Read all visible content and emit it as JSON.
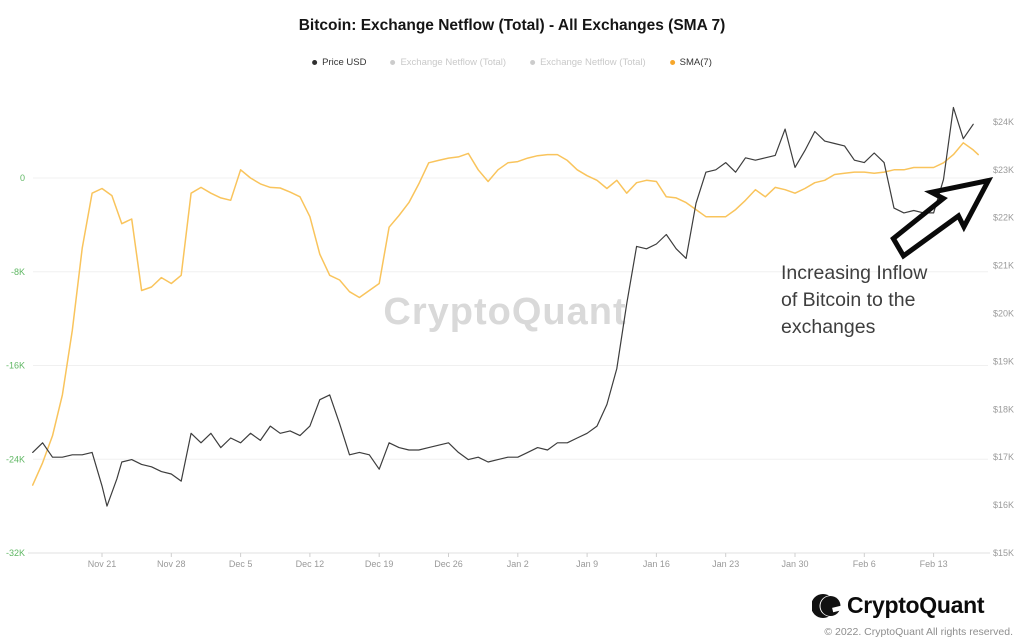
{
  "title": "Bitcoin: Exchange Netflow (Total) - All Exchanges (SMA 7)",
  "legend": [
    {
      "label": "Price USD",
      "dot_color": "#2f2f2f",
      "active": true
    },
    {
      "label": "Exchange Netflow (Total)",
      "dot_color": "#cccccc",
      "active": false
    },
    {
      "label": "Exchange Netflow (Total)",
      "dot_color": "#cccccc",
      "active": false
    },
    {
      "label": "SMA(7)",
      "dot_color": "#f6a62b",
      "active": true
    }
  ],
  "watermark": "CryptoQuant",
  "annotation": {
    "lines": [
      "Increasing Inflow",
      "of Bitcoin to the",
      "exchanges"
    ]
  },
  "footer": {
    "brand": "CryptoQuant",
    "copyright": "© 2022. CryptoQuant All rights reserved."
  },
  "chart_data": {
    "type": "line",
    "title": "Bitcoin: Exchange Netflow (Total) - All Exchanges (SMA 7)",
    "grid": "horizontal",
    "legend_position": "top",
    "x_axis": {
      "ticks": [
        {
          "label": "Nov 21",
          "day": 7
        },
        {
          "label": "Nov 28",
          "day": 14
        },
        {
          "label": "Dec 5",
          "day": 21
        },
        {
          "label": "Dec 12",
          "day": 28
        },
        {
          "label": "Dec 19",
          "day": 35
        },
        {
          "label": "Dec 26",
          "day": 42
        },
        {
          "label": "Jan 2",
          "day": 49
        },
        {
          "label": "Jan 9",
          "day": 56
        },
        {
          "label": "Jan 16",
          "day": 63
        },
        {
          "label": "Jan 23",
          "day": 70
        },
        {
          "label": "Jan 30",
          "day": 77
        },
        {
          "label": "Feb 6",
          "day": 84
        },
        {
          "label": "Feb 13",
          "day": 91
        }
      ],
      "domain_days": [
        0,
        96
      ]
    },
    "left_axis": {
      "color": "#5fb763",
      "range": [
        0,
        -32
      ],
      "ticks": [
        {
          "label": "0",
          "value": 0
        },
        {
          "label": "-8K",
          "value": -8
        },
        {
          "label": "-16K",
          "value": -16
        },
        {
          "label": "-24K",
          "value": -24
        },
        {
          "label": "-32K",
          "value": -32
        }
      ]
    },
    "right_axis": {
      "color": "#9b9b9b",
      "range": [
        15,
        24
      ],
      "ticks": [
        {
          "label": "$24K",
          "value": 24
        },
        {
          "label": "$23K",
          "value": 23
        },
        {
          "label": "$22K",
          "value": 22
        },
        {
          "label": "$21K",
          "value": 21
        },
        {
          "label": "$20K",
          "value": 20
        },
        {
          "label": "$19K",
          "value": 19
        },
        {
          "label": "$18K",
          "value": 18
        },
        {
          "label": "$17K",
          "value": 17
        },
        {
          "label": "$16K",
          "value": 16
        },
        {
          "label": "$15K",
          "value": 15
        }
      ]
    },
    "series": [
      {
        "name": "SMA(7)",
        "axis": "left",
        "color": "#f9c45c",
        "width": 1.5,
        "points": [
          [
            0,
            -26.2
          ],
          [
            1,
            -24.3
          ],
          [
            2,
            -22.0
          ],
          [
            3,
            -18.5
          ],
          [
            4,
            -13.0
          ],
          [
            5,
            -6.0
          ],
          [
            6,
            -1.3
          ],
          [
            7,
            -0.9
          ],
          [
            8,
            -1.5
          ],
          [
            9,
            -3.9
          ],
          [
            10,
            -3.5
          ],
          [
            11,
            -9.6
          ],
          [
            12,
            -9.3
          ],
          [
            13,
            -8.5
          ],
          [
            14,
            -9.0
          ],
          [
            15,
            -8.3
          ],
          [
            16,
            -1.3
          ],
          [
            17,
            -0.8
          ],
          [
            18,
            -1.3
          ],
          [
            19,
            -1.7
          ],
          [
            20,
            -1.9
          ],
          [
            21,
            0.7
          ],
          [
            22,
            0.0
          ],
          [
            23,
            -0.5
          ],
          [
            24,
            -0.8
          ],
          [
            25,
            -0.85
          ],
          [
            26,
            -1.2
          ],
          [
            27,
            -1.6
          ],
          [
            28,
            -3.3
          ],
          [
            29,
            -6.5
          ],
          [
            30,
            -8.3
          ],
          [
            31,
            -8.7
          ],
          [
            32,
            -9.7
          ],
          [
            33,
            -10.2
          ],
          [
            34,
            -9.6
          ],
          [
            35,
            -9.0
          ],
          [
            36,
            -4.2
          ],
          [
            37,
            -3.2
          ],
          [
            38,
            -2.1
          ],
          [
            39,
            -0.5
          ],
          [
            40,
            1.3
          ],
          [
            41,
            1.5
          ],
          [
            42,
            1.7
          ],
          [
            43,
            1.8
          ],
          [
            44,
            2.1
          ],
          [
            45,
            0.7
          ],
          [
            46,
            -0.3
          ],
          [
            47,
            0.7
          ],
          [
            48,
            1.3
          ],
          [
            49,
            1.4
          ],
          [
            50,
            1.7
          ],
          [
            51,
            1.9
          ],
          [
            52,
            2.0
          ],
          [
            53,
            2.0
          ],
          [
            54,
            1.5
          ],
          [
            55,
            0.7
          ],
          [
            56,
            0.2
          ],
          [
            57,
            -0.2
          ],
          [
            58,
            -0.9
          ],
          [
            59,
            -0.2
          ],
          [
            60,
            -1.3
          ],
          [
            61,
            -0.4
          ],
          [
            62,
            -0.2
          ],
          [
            63,
            -0.3
          ],
          [
            64,
            -1.6
          ],
          [
            65,
            -1.7
          ],
          [
            66,
            -2.1
          ],
          [
            67,
            -2.7
          ],
          [
            68,
            -3.3
          ],
          [
            69,
            -3.3
          ],
          [
            70,
            -3.3
          ],
          [
            71,
            -2.7
          ],
          [
            72,
            -1.9
          ],
          [
            73,
            -1.0
          ],
          [
            74,
            -1.6
          ],
          [
            75,
            -0.8
          ],
          [
            76,
            -1.0
          ],
          [
            77,
            -1.3
          ],
          [
            78,
            -0.9
          ],
          [
            79,
            -0.4
          ],
          [
            80,
            -0.2
          ],
          [
            81,
            0.3
          ],
          [
            82,
            0.4
          ],
          [
            83,
            0.5
          ],
          [
            84,
            0.5
          ],
          [
            85,
            0.4
          ],
          [
            86,
            0.5
          ],
          [
            87,
            0.7
          ],
          [
            88,
            0.7
          ],
          [
            89,
            0.9
          ],
          [
            90,
            0.9
          ],
          [
            91,
            0.9
          ],
          [
            92,
            1.3
          ],
          [
            93,
            2.0
          ],
          [
            94,
            3.0
          ],
          [
            95,
            2.4
          ],
          [
            95.5,
            2.0
          ]
        ]
      },
      {
        "name": "Price USD",
        "axis": "right",
        "color": "#3d3d3d",
        "width": 1.2,
        "points": [
          [
            0,
            17.1
          ],
          [
            1,
            17.3
          ],
          [
            2,
            17.0
          ],
          [
            3,
            17.0
          ],
          [
            4,
            17.05
          ],
          [
            5,
            17.05
          ],
          [
            6,
            17.1
          ],
          [
            7,
            16.4
          ],
          [
            7.5,
            15.98
          ],
          [
            8.5,
            16.55
          ],
          [
            9,
            16.9
          ],
          [
            10,
            16.95
          ],
          [
            11,
            16.85
          ],
          [
            12,
            16.8
          ],
          [
            13,
            16.7
          ],
          [
            14,
            16.65
          ],
          [
            15,
            16.5
          ],
          [
            16,
            17.5
          ],
          [
            17,
            17.3
          ],
          [
            18,
            17.5
          ],
          [
            19,
            17.2
          ],
          [
            20,
            17.4
          ],
          [
            21,
            17.3
          ],
          [
            22,
            17.5
          ],
          [
            23,
            17.35
          ],
          [
            24,
            17.65
          ],
          [
            25,
            17.5
          ],
          [
            26,
            17.55
          ],
          [
            27,
            17.45
          ],
          [
            28,
            17.65
          ],
          [
            29,
            18.2
          ],
          [
            30,
            18.3
          ],
          [
            31,
            17.7
          ],
          [
            32,
            17.05
          ],
          [
            33,
            17.1
          ],
          [
            34,
            17.05
          ],
          [
            35,
            16.75
          ],
          [
            36,
            17.3
          ],
          [
            37,
            17.2
          ],
          [
            38,
            17.15
          ],
          [
            39,
            17.15
          ],
          [
            40,
            17.2
          ],
          [
            41,
            17.25
          ],
          [
            42,
            17.3
          ],
          [
            43,
            17.1
          ],
          [
            44,
            16.95
          ],
          [
            45,
            17.0
          ],
          [
            46,
            16.9
          ],
          [
            47,
            16.95
          ],
          [
            48,
            17.0
          ],
          [
            49,
            17.0
          ],
          [
            50,
            17.1
          ],
          [
            51,
            17.2
          ],
          [
            52,
            17.15
          ],
          [
            53,
            17.3
          ],
          [
            54,
            17.3
          ],
          [
            55,
            17.4
          ],
          [
            56,
            17.5
          ],
          [
            57,
            17.65
          ],
          [
            58,
            18.1
          ],
          [
            59,
            18.85
          ],
          [
            60,
            20.2
          ],
          [
            61,
            21.4
          ],
          [
            62,
            21.35
          ],
          [
            63,
            21.45
          ],
          [
            64,
            21.65
          ],
          [
            65,
            21.35
          ],
          [
            66,
            21.15
          ],
          [
            67,
            22.3
          ],
          [
            68,
            22.95
          ],
          [
            69,
            23.0
          ],
          [
            70,
            23.15
          ],
          [
            71,
            22.95
          ],
          [
            72,
            23.25
          ],
          [
            73,
            23.2
          ],
          [
            74,
            23.25
          ],
          [
            75,
            23.3
          ],
          [
            76,
            23.85
          ],
          [
            77,
            23.05
          ],
          [
            78,
            23.4
          ],
          [
            79,
            23.8
          ],
          [
            80,
            23.6
          ],
          [
            81,
            23.55
          ],
          [
            82,
            23.5
          ],
          [
            83,
            23.2
          ],
          [
            84,
            23.15
          ],
          [
            85,
            23.35
          ],
          [
            86,
            23.15
          ],
          [
            87,
            22.2
          ],
          [
            88,
            22.1
          ],
          [
            89,
            22.15
          ],
          [
            90,
            22.1
          ],
          [
            91,
            22.1
          ],
          [
            92,
            22.8
          ],
          [
            93,
            24.3
          ],
          [
            94,
            23.65
          ],
          [
            95,
            23.95
          ]
        ]
      }
    ]
  }
}
